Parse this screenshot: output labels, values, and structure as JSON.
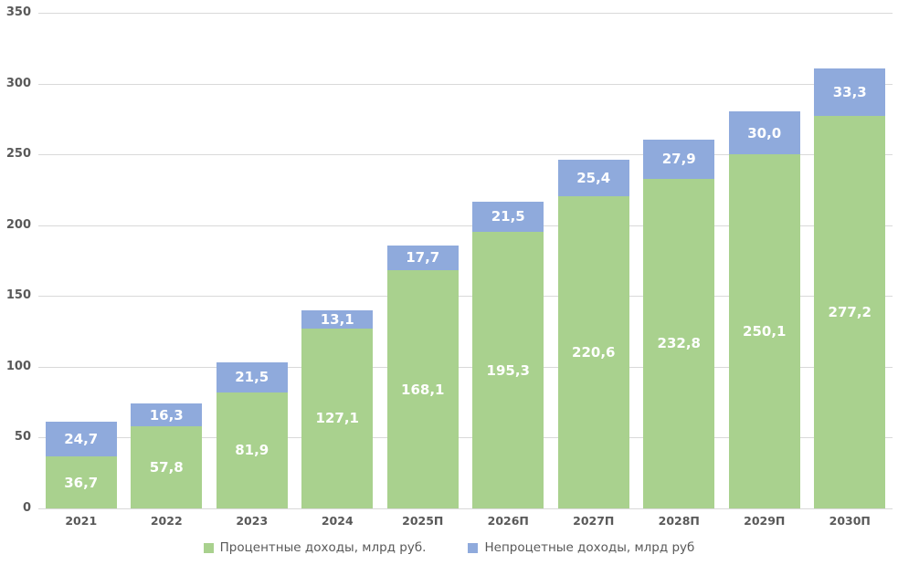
{
  "chart_data": {
    "type": "bar",
    "stacked": true,
    "title": "",
    "xlabel": "",
    "ylabel": "",
    "categories": [
      "2021",
      "2022",
      "2023",
      "2024",
      "2025П",
      "2026П",
      "2027П",
      "2028П",
      "2029П",
      "2030П"
    ],
    "series": [
      {
        "name": "Процентные доходы, млрд руб.",
        "color": "#a9d18e",
        "values": [
          36.7,
          57.8,
          81.9,
          127.1,
          168.1,
          195.3,
          220.6,
          232.8,
          250.1,
          277.2
        ]
      },
      {
        "name": "Непроцетные доходы, млрд руб",
        "color": "#8faadc",
        "values": [
          24.7,
          16.3,
          21.5,
          13.1,
          17.7,
          21.5,
          25.4,
          27.9,
          30.0,
          33.3
        ]
      }
    ],
    "ylim": [
      0,
      350
    ],
    "yticks": [
      0,
      50,
      100,
      150,
      200,
      250,
      300,
      350
    ],
    "grid": true,
    "gridline_color": "#d9d9d9",
    "legend_position": "bottom",
    "decimal_separator": ",",
    "value_label_color": "#ffffff",
    "axis_label_color": "#595959",
    "data_labels_decimals": 1
  }
}
